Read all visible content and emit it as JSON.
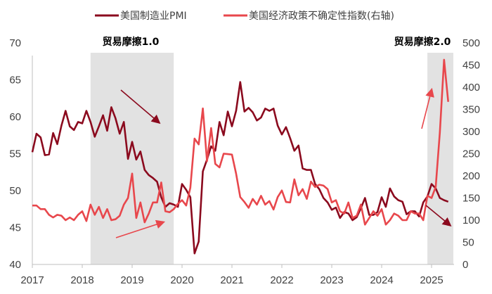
{
  "chart_data": {
    "type": "line",
    "title": "",
    "legend": {
      "placement": "top",
      "entries": [
        "美国制造业PMI",
        "美国经济政策不确定性指数(右轴)"
      ]
    },
    "x_start": "2017-01",
    "x_end": "2025-05",
    "x_ticks": [
      "2017",
      "2018",
      "2019",
      "2020",
      "2021",
      "2022",
      "2023",
      "2024",
      "2025"
    ],
    "y_left": {
      "range": [
        40,
        70
      ],
      "ticks": [
        "40",
        "45",
        "50",
        "55",
        "60",
        "65",
        "70"
      ]
    },
    "y_right": {
      "range": [
        0,
        500
      ],
      "ticks": [
        "0",
        "50",
        "100",
        "150",
        "200",
        "250",
        "300",
        "350",
        "400",
        "450",
        "500"
      ]
    },
    "grid": false,
    "series": [
      {
        "name": "美国制造业PMI",
        "axis": "left",
        "color": "#8B0A1E",
        "values": [
          55.2,
          57.7,
          57.2,
          54.8,
          54.9,
          57.8,
          56.3,
          58.8,
          60.8,
          58.7,
          58.2,
          59.3,
          59.1,
          60.8,
          59.3,
          57.3,
          58.7,
          60.2,
          58.1,
          61.3,
          59.8,
          57.7,
          59.3,
          54.3,
          56.6,
          54.2,
          55.3,
          52.8,
          52.1,
          51.7,
          51.2,
          49.1,
          47.8,
          48.3,
          48.1,
          47.8,
          50.9,
          50.1,
          49.1,
          41.5,
          43.1,
          52.6,
          54.2,
          56.0,
          55.4,
          59.3,
          57.5,
          60.7,
          58.7,
          60.8,
          64.7,
          60.7,
          61.2,
          60.6,
          59.5,
          59.9,
          61.1,
          60.8,
          61.1,
          58.8,
          57.6,
          58.6,
          57.1,
          55.4,
          56.1,
          53.0,
          52.8,
          52.8,
          50.9,
          50.2,
          49.0,
          48.4,
          47.4,
          47.7,
          46.3,
          47.1,
          46.9,
          46.0,
          46.4,
          47.6,
          49.0,
          46.7,
          46.7,
          47.1,
          49.1,
          47.8,
          50.3,
          49.2,
          48.7,
          48.5,
          46.8,
          47.2,
          47.2,
          46.5,
          48.4,
          49.2,
          50.9,
          50.3,
          49.0,
          48.7,
          48.5
        ]
      },
      {
        "name": "美国经济政策不确定性指数(右轴)",
        "axis": "right",
        "color": "#E8474C",
        "values": [
          133,
          133,
          125,
          125,
          112,
          106,
          112,
          110,
          100,
          106,
          100,
          112,
          120,
          98,
          135,
          112,
          130,
          105,
          125,
          100,
          102,
          110,
          135,
          150,
          205,
          105,
          140,
          95,
          115,
          140,
          140,
          185,
          120,
          118,
          125,
          137,
          145,
          133,
          173,
          284,
          271,
          352,
          233,
          308,
          227,
          219,
          250,
          249,
          248,
          205,
          152,
          141,
          128,
          148,
          135,
          155,
          135,
          143,
          124,
          152,
          167,
          141,
          140,
          192,
          156,
          170,
          148,
          187,
          175,
          180,
          178,
          170,
          140,
          145,
          120,
          115,
          140,
          105,
          110,
          135,
          90,
          105,
          120,
          110,
          125,
          90,
          100,
          115,
          110,
          100,
          100,
          120,
          115,
          115,
          100,
          155,
          150,
          175,
          298,
          462,
          367
        ]
      }
    ],
    "shaded_periods": [
      {
        "label": "贸易摩擦1.0",
        "from": "2018-03",
        "to": "2019-11"
      },
      {
        "label": "贸易摩擦2.0",
        "from": "2024-12",
        "to": "2025-05"
      }
    ]
  }
}
